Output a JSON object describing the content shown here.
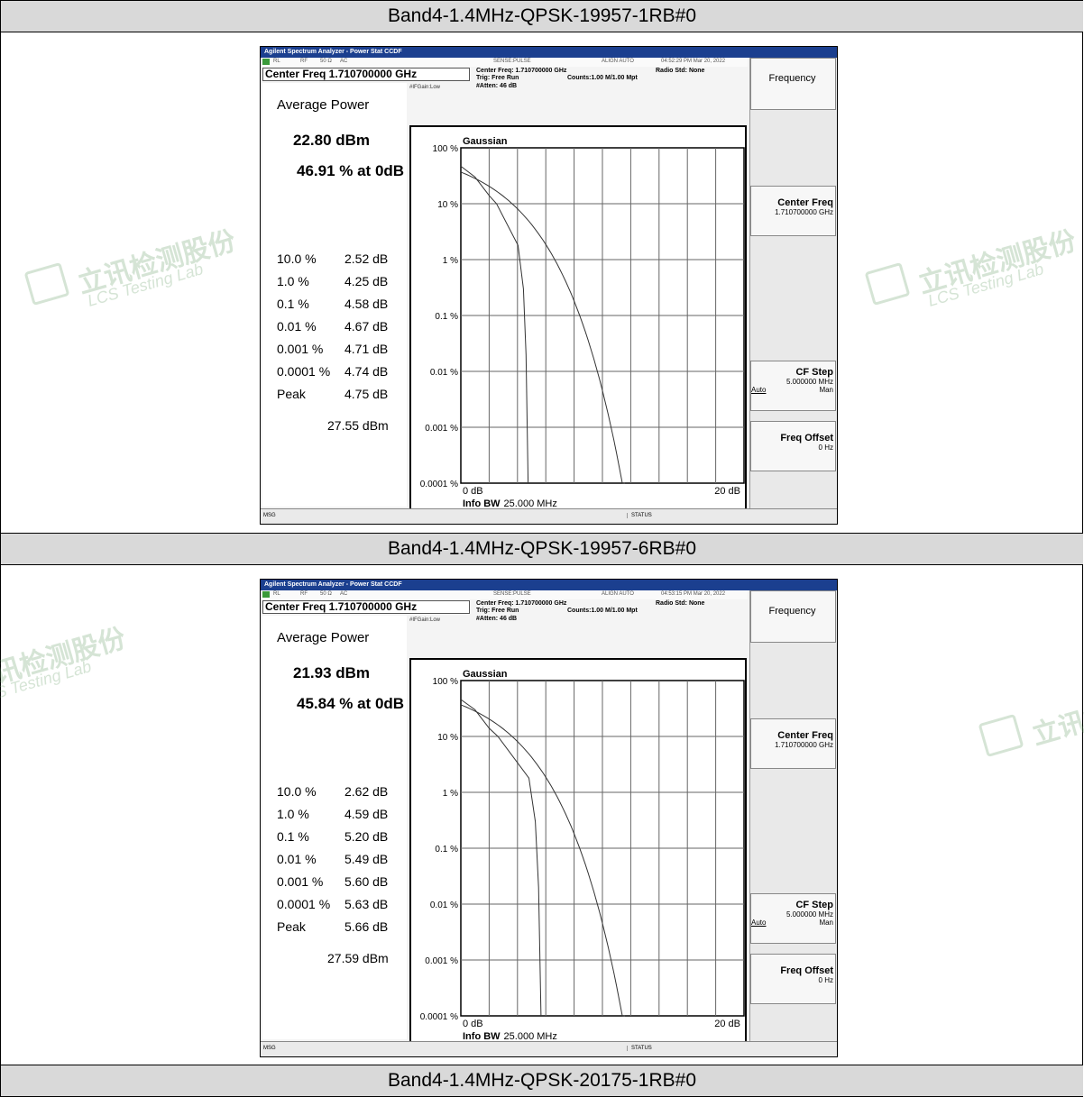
{
  "headers": [
    "Band4-1.4MHz-QPSK-19957-1RB#0",
    "Band4-1.4MHz-QPSK-19957-6RB#0",
    "Band4-1.4MHz-QPSK-20175-1RB#0"
  ],
  "watermark": {
    "text": "立讯检测股份",
    "sub": "LCS Testing Lab"
  },
  "analyzers": [
    {
      "title": "Agilent Spectrum Analyzer - Power Stat CCDF",
      "status": {
        "rl": "RL",
        "rf": "RF",
        "ohm": "50 Ω",
        "ac": "AC",
        "sense": "SENSE:PULSE",
        "align": "ALIGN AUTO",
        "time": "04:52:29 PM Mar 20, 2022"
      },
      "center_freq_box": "Center Freq 1.710700000 GHz",
      "center_freq_info": "Center Freq: 1.710700000 GHz",
      "trig": "Trig: Free Run",
      "counts": "Counts:1.00 M/1.00 Mpt",
      "radio_std": "Radio Std: None",
      "ifgain": "#IFGain:Low",
      "atten": "#Atten: 46 dB",
      "avg_title": "Average Power",
      "avg_dbm": "22.80 dBm",
      "avg_pct": "46.91 % at 0dB",
      "stats": [
        {
          "pct": "10.0 %",
          "db": "2.52 dB"
        },
        {
          "pct": "1.0 %",
          "db": "4.25 dB"
        },
        {
          "pct": "0.1 %",
          "db": "4.58 dB"
        },
        {
          "pct": "0.01 %",
          "db": "4.67 dB"
        },
        {
          "pct": "0.001 %",
          "db": "4.71 dB"
        },
        {
          "pct": "0.0001 %",
          "db": "4.74 dB"
        },
        {
          "pct": "Peak",
          "db": "4.75 dB"
        }
      ],
      "peak_dbm": "27.55 dBm",
      "plot": {
        "gaussian": "Gaussian",
        "y_ticks": [
          "100 %",
          "10 %",
          "1 %",
          "0.1 %",
          "0.01 %",
          "0.001 %",
          "0.0001 %"
        ],
        "x_start": "0 dB",
        "x_end": "20 dB",
        "info_bw_label": "Info BW",
        "info_bw_value": "25.000 MHz"
      },
      "softkeys": {
        "frequency": "Frequency",
        "center_freq": "Center Freq",
        "center_freq_val": "1.710700000 GHz",
        "cf_step": "CF Step",
        "cf_step_val": "5.000000 MHz",
        "auto": "Auto",
        "man": "Man",
        "freq_offset": "Freq Offset",
        "freq_offset_val": "0 Hz"
      },
      "msg": "MSG",
      "status_label": "STATUS"
    },
    {
      "title": "Agilent Spectrum Analyzer - Power Stat CCDF",
      "status": {
        "rl": "RL",
        "rf": "RF",
        "ohm": "50 Ω",
        "ac": "AC",
        "sense": "SENSE:PULSE",
        "align": "ALIGN AUTO",
        "time": "04:53:15 PM Mar 20, 2022"
      },
      "center_freq_box": "Center Freq 1.710700000 GHz",
      "center_freq_info": "Center Freq: 1.710700000 GHz",
      "trig": "Trig: Free Run",
      "counts": "Counts:1.00 M/1.00 Mpt",
      "radio_std": "Radio Std: None",
      "ifgain": "#IFGain:Low",
      "atten": "#Atten: 46 dB",
      "avg_title": "Average Power",
      "avg_dbm": "21.93 dBm",
      "avg_pct": "45.84 % at 0dB",
      "stats": [
        {
          "pct": "10.0 %",
          "db": "2.62 dB"
        },
        {
          "pct": "1.0 %",
          "db": "4.59 dB"
        },
        {
          "pct": "0.1 %",
          "db": "5.20 dB"
        },
        {
          "pct": "0.01 %",
          "db": "5.49 dB"
        },
        {
          "pct": "0.001 %",
          "db": "5.60 dB"
        },
        {
          "pct": "0.0001 %",
          "db": "5.63 dB"
        },
        {
          "pct": "Peak",
          "db": "5.66 dB"
        }
      ],
      "peak_dbm": "27.59 dBm",
      "plot": {
        "gaussian": "Gaussian",
        "y_ticks": [
          "100 %",
          "10 %",
          "1 %",
          "0.1 %",
          "0.01 %",
          "0.001 %",
          "0.0001 %"
        ],
        "x_start": "0 dB",
        "x_end": "20 dB",
        "info_bw_label": "Info BW",
        "info_bw_value": "25.000 MHz"
      },
      "softkeys": {
        "frequency": "Frequency",
        "center_freq": "Center Freq",
        "center_freq_val": "1.710700000 GHz",
        "cf_step": "CF Step",
        "cf_step_val": "5.000000 MHz",
        "auto": "Auto",
        "man": "Man",
        "freq_offset": "Freq Offset",
        "freq_offset_val": "0 Hz"
      },
      "msg": "MSG",
      "status_label": "STATUS"
    }
  ]
}
